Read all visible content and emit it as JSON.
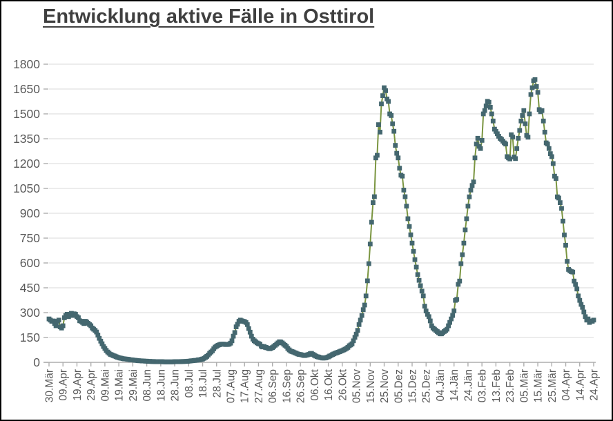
{
  "window": {
    "background": "#ffffff",
    "border_color": "#000000"
  },
  "title": "Entwicklung aktive Fälle in Osttirol",
  "chart_data": {
    "type": "line",
    "title": "Entwicklung aktive Fälle in Osttirol",
    "xlabel": "",
    "ylabel": "",
    "legend": "none",
    "grid": "horizontal",
    "marker": "square",
    "x_unit": "daily",
    "x_range": [
      "30.Mär",
      "24.Apr"
    ],
    "ylim": [
      0,
      1800
    ],
    "y_ticks": [
      0,
      150,
      300,
      450,
      600,
      750,
      900,
      1050,
      1200,
      1350,
      1500,
      1650,
      1800
    ],
    "x_tick_labels": [
      "30.Mär",
      "09.Apr",
      "19.Apr",
      "29.Apr",
      "09.Mai",
      "19.Mai",
      "29.Mai",
      "08.Jun",
      "18.Jun",
      "28.Jun",
      "08.Jul",
      "18.Jul",
      "28.Jul",
      "07.Aug",
      "17.Aug",
      "27.Aug",
      "06.Sep",
      "16.Sep",
      "26.Sep",
      "06.Okt",
      "16.Okt",
      "26.Okt",
      "05.Nov",
      "15.Nov",
      "25.Nov",
      "05.Dez",
      "15.Dez",
      "25.Dez",
      "04.Jän",
      "14.Jän",
      "24.Jän",
      "03.Feb",
      "13.Feb",
      "23.Feb",
      "05.Mär",
      "15.Mär",
      "25.Mär",
      "04.Apr",
      "14.Apr",
      "24.Apr"
    ],
    "x_tick_interval_days": 10,
    "colors": {
      "line": "#7A9540",
      "marker": "#44676F",
      "grid": "#D9D9D9",
      "axis": "#ADADAD",
      "tick_label": "#595959",
      "title": "#3F3F3F"
    },
    "series": [
      {
        "name": "aktive Fälle",
        "values": [
          262,
          255,
          248,
          250,
          234,
          221,
          248,
          255,
          214,
          207,
          221,
          269,
          283,
          290,
          276,
          290,
          296,
          283,
          293,
          290,
          276,
          269,
          251,
          248,
          241,
          234,
          248,
          243,
          236,
          228,
          221,
          207,
          200,
          193,
          183,
          165,
          145,
          128,
          112,
          96,
          84,
          72,
          62,
          55,
          48,
          45,
          41,
          38,
          34,
          31,
          28,
          26,
          24,
          22,
          21,
          20,
          19,
          18,
          16,
          15,
          14,
          13,
          12,
          11,
          10,
          9,
          9,
          8,
          8,
          7,
          7,
          6,
          6,
          5,
          5,
          5,
          4,
          4,
          4,
          4,
          4,
          4,
          3,
          3,
          3,
          3,
          3,
          3,
          3,
          3,
          4,
          4,
          4,
          4,
          4,
          5,
          5,
          5,
          6,
          6,
          7,
          8,
          9,
          10,
          11,
          12,
          13,
          15,
          16,
          18,
          20,
          24,
          30,
          36,
          44,
          54,
          62,
          70,
          82,
          92,
          98,
          103,
          106,
          109,
          110,
          110,
          108,
          107,
          108,
          110,
          116,
          130,
          158,
          180,
          214,
          230,
          248,
          255,
          251,
          248,
          246,
          241,
          228,
          204,
          182,
          158,
          140,
          130,
          124,
          117,
          113,
          110,
          98,
          93,
          96,
          90,
          88,
          85,
          82,
          85,
          89,
          96,
          103,
          110,
          117,
          124,
          123,
          117,
          110,
          103,
          96,
          84,
          75,
          68,
          65,
          62,
          58,
          55,
          51,
          48,
          47,
          45,
          43,
          41,
          43,
          45,
          48,
          52,
          54,
          48,
          43,
          38,
          34,
          32,
          29,
          28,
          26,
          26,
          27,
          30,
          33,
          38,
          42,
          47,
          51,
          55,
          58,
          61,
          64,
          68,
          71,
          75,
          79,
          84,
          90,
          100,
          105,
          112,
          130,
          151,
          170,
          193,
          228,
          255,
          283,
          318,
          346,
          401,
          492,
          596,
          714,
          846,
          964,
          1000,
          1234,
          1250,
          1435,
          1390,
          1560,
          1610,
          1658,
          1640,
          1590,
          1575,
          1500,
          1490,
          1440,
          1395,
          1310,
          1262,
          1234,
          1172,
          1130,
          1124,
          1040,
          1000,
          943,
          867,
          820,
          770,
          720,
          670,
          620,
          575,
          530,
          495,
          463,
          430,
          401,
          339,
          310,
          290,
          276,
          250,
          221,
          207,
          200,
          193,
          186,
          179,
          172,
          172,
          179,
          186,
          193,
          200,
          221,
          241,
          262,
          283,
          311,
          374,
          380,
          471,
          491,
          596,
          650,
          720,
          800,
          867,
          943,
          999,
          1040,
          1068,
          1089,
          1234,
          1318,
          1353,
          1304,
          1291,
          1340,
          1500,
          1520,
          1548,
          1576,
          1570,
          1540,
          1500,
          1457,
          1408,
          1394,
          1380,
          1365,
          1352,
          1346,
          1335,
          1325,
          1318,
          1242,
          1234,
          1228,
          1374,
          1360,
          1240,
          1230,
          1290,
          1353,
          1400,
          1457,
          1490,
          1520,
          1440,
          1370,
          1359,
          1500,
          1617,
          1658,
          1700,
          1707,
          1665,
          1630,
          1526,
          1513,
          1520,
          1457,
          1390,
          1325,
          1318,
          1291,
          1260,
          1242,
          1200,
          1124,
          1110,
          999,
          992,
          964,
          929,
          853,
          769,
          707,
          610,
          561,
          553,
          548,
          545,
          491,
          470,
          443,
          401,
          374,
          350,
          332,
          304,
          276,
          255,
          262,
          241,
          250,
          248,
          255
        ]
      }
    ]
  }
}
